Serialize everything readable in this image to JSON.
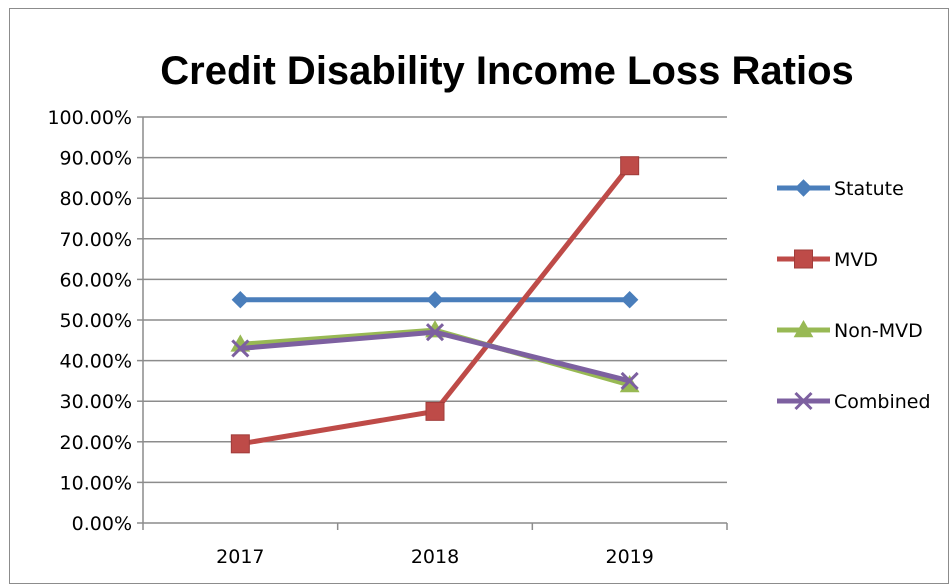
{
  "chart_data": {
    "type": "line",
    "title": "Credit Disability Income Loss Ratios",
    "xlabel": "",
    "ylabel": "",
    "categories": [
      "2017",
      "2018",
      "2019"
    ],
    "ylim": [
      0,
      100
    ],
    "yticks": [
      "0.00%",
      "10.00%",
      "20.00%",
      "30.00%",
      "40.00%",
      "50.00%",
      "60.00%",
      "70.00%",
      "80.00%",
      "90.00%",
      "100.00%"
    ],
    "grid": true,
    "legend": "right",
    "series": [
      {
        "name": "Statute",
        "values": [
          55,
          55,
          55
        ],
        "color": "#4a7ebb",
        "marker": "diamond"
      },
      {
        "name": "MVD",
        "values": [
          19.5,
          27.5,
          88
        ],
        "color": "#be4b48",
        "marker": "square"
      },
      {
        "name": "Non-MVD",
        "values": [
          44,
          47.5,
          34
        ],
        "color": "#98b954",
        "marker": "triangle"
      },
      {
        "name": "Combined",
        "values": [
          43,
          47,
          35
        ],
        "color": "#7d60a0",
        "marker": "x"
      }
    ]
  }
}
